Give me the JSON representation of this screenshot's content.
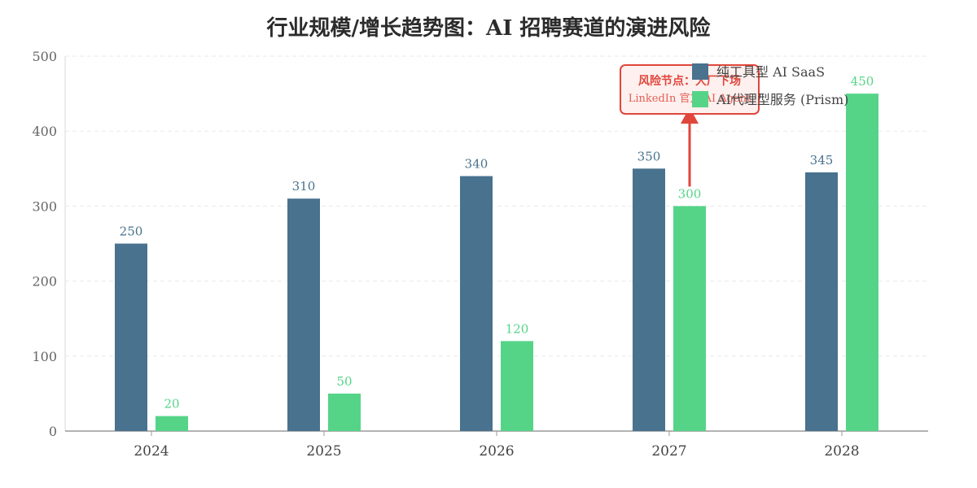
{
  "chart_data": {
    "type": "bar",
    "title": "行业规模/增长趋势图：AI 招聘赛道的演进风险",
    "categories": [
      "2024",
      "2025",
      "2026",
      "2027",
      "2028"
    ],
    "series": [
      {
        "name": "纯工具型 AI SaaS",
        "values": [
          250,
          310,
          340,
          350,
          345
        ],
        "color": "#48728e"
      },
      {
        "name": "AI代理型服务 (Prism)",
        "values": [
          20,
          50,
          120,
          300,
          450
        ],
        "color": "#55d488"
      }
    ],
    "ylim": [
      0,
      500
    ],
    "yticks": [
      0,
      100,
      200,
      300,
      400,
      500
    ],
    "xlabel": "",
    "ylabel": "",
    "grid": true,
    "legend": "top-right",
    "annotation": {
      "title": "风险节点：大厂下场",
      "subtitle": "LinkedIn 官方 AI Agent",
      "category": "2027",
      "points_to_value": 450,
      "from_value": 300,
      "color": "#e0463c"
    }
  }
}
